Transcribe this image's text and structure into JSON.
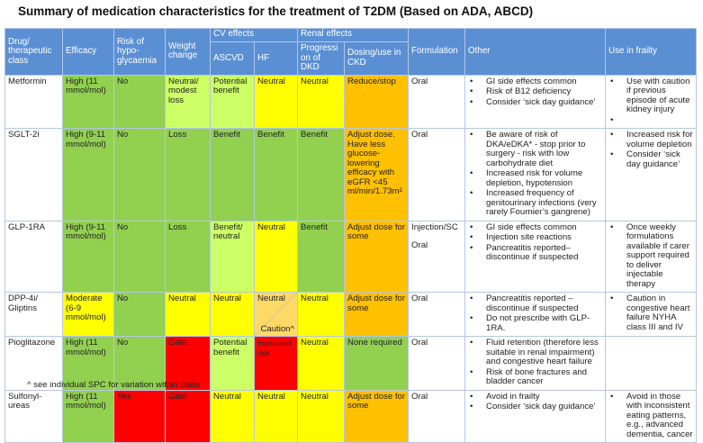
{
  "title": "Summary of medication characteristics for the treatment of T2DM (Based on ADA, ABCD)",
  "headers": {
    "drug": "Drug/ therapeutic class",
    "efficacy": "Efficacy",
    "hypo": "Risk of hypo-glycaemia",
    "weight": "Weight change",
    "cv": "CV effects",
    "ascvd": "ASCVD",
    "hf": "HF",
    "renal": "Renal effects",
    "dkd": "Progressi on of DKD",
    "ckd": "Dosing/use in CKD",
    "formulation": "Formulation",
    "other": "Other",
    "frailty": "Use in frailty"
  },
  "colors": {
    "header": "#5b8fd4",
    "green": "#92d050",
    "light_green": "#ccff66",
    "yellow": "#ffff00",
    "orange": "#ffc000",
    "red": "#ff0000",
    "peach": "#ffd966"
  },
  "rows": [
    {
      "drug": "Metformin",
      "efficacy": {
        "text": "High (11 mmol/mol)",
        "color": "g"
      },
      "hypo": {
        "text": "No",
        "color": "g"
      },
      "weight": {
        "text": "Neutral/ modest loss",
        "color": "lg"
      },
      "ascvd": {
        "text": "Potential benefit",
        "color": "lg"
      },
      "hf": {
        "text": "Neutral",
        "color": "y"
      },
      "dkd": {
        "text": "Neutral",
        "color": "y"
      },
      "ckd": {
        "text": "Reduce/stop",
        "color": "o"
      },
      "formulation": [
        "Oral"
      ],
      "other": [
        "GI side effects common",
        "Risk of B12 deficiency",
        "Consider ‘sick day guidance’"
      ],
      "frailty": [
        "Use with caution if previous episode of acute kidney injury",
        ""
      ]
    },
    {
      "drug": "SGLT-2i",
      "efficacy": {
        "text": "High (9-11 mmol/mol)",
        "color": "g"
      },
      "hypo": {
        "text": "No",
        "color": "g"
      },
      "weight": {
        "text": "Loss",
        "color": "g"
      },
      "ascvd": {
        "text": "Benefit",
        "color": "g"
      },
      "hf": {
        "text": "Benefit",
        "color": "g"
      },
      "dkd": {
        "text": "Benefit",
        "color": "g"
      },
      "ckd": {
        "text": "Adjust dose. Have less glucose-lowering efficacy with eGFR <45 ml/min/1.73m²",
        "color": "o"
      },
      "formulation": [
        "Oral"
      ],
      "other": [
        "Be aware of risk of DKA/eDKA* - stop prior to surgery - risk with low carbohydrate diet",
        "Increased risk for volume depletion, hypotension",
        "Increased frequency of genitourinary infections (very rarely Fournier’s gangrene)"
      ],
      "frailty": [
        "Increased risk for volume depletion",
        "Consider ‘sick day guidance’"
      ]
    },
    {
      "drug": "GLP-1RA",
      "efficacy": {
        "text": "High (9-11 mmol/mol)",
        "color": "g"
      },
      "hypo": {
        "text": "No",
        "color": "g"
      },
      "weight": {
        "text": "Loss",
        "color": "g"
      },
      "ascvd": {
        "text": "Benefit/ neutral",
        "color": "lg"
      },
      "hf": {
        "text": "Neutral",
        "color": "y"
      },
      "dkd": {
        "text": "Benefit",
        "color": "g"
      },
      "ckd": {
        "text": "Adjust dose for some",
        "color": "o"
      },
      "formulation": [
        "Injection/SC",
        "Oral"
      ],
      "other": [
        "GI side effects common",
        "Injection site reactions",
        "Pancreatitis reported– discontinue if suspected"
      ],
      "frailty": [
        "Once weekly formulations available if carer support required to deliver injectable therapy"
      ]
    },
    {
      "drug": "DPP-4i/ Gliptins",
      "efficacy": {
        "text": "Moderate (6-9 mmol/mol)",
        "color": "y"
      },
      "hypo": {
        "text": "No",
        "color": "g"
      },
      "weight": {
        "text": "Neutral",
        "color": "y"
      },
      "ascvd": {
        "text": "Neutral",
        "color": "y"
      },
      "hf": {
        "text": "Neutral",
        "color": "pc",
        "caution": "Caution^"
      },
      "dkd": {
        "text": "Neutral",
        "color": "y"
      },
      "ckd": {
        "text": "Adjust dose for some",
        "color": "o"
      },
      "formulation": [
        "Oral"
      ],
      "other": [
        "Pancreatitis reported – discontinue if suspected",
        "Do not prescribe with GLP-1RA."
      ],
      "frailty": [
        "Caution in congestive heart failure NYHA class III and IV"
      ]
    },
    {
      "drug": "Pioglitazone",
      "efficacy": {
        "text": "High (11 mmol/mol)",
        "color": "g"
      },
      "hypo": {
        "text": "No",
        "color": "g"
      },
      "weight": {
        "text": "Gain",
        "color": "r"
      },
      "ascvd": {
        "text": "Potential benefit",
        "color": "lg"
      },
      "hf": {
        "text": "Increased risk",
        "color": "r"
      },
      "dkd": {
        "text": "Neutral",
        "color": "y"
      },
      "ckd": {
        "text": "None required",
        "color": "g"
      },
      "formulation": [
        "Oral"
      ],
      "other": [
        "Fluid retention (therefore less suitable in renal impairment) and congestive heart failure",
        "Risk of bone fractures and bladder cancer"
      ],
      "frailty": []
    },
    {
      "drug": "Sulfonyl-ureas",
      "efficacy": {
        "text": "High (11 mmol/mol)",
        "color": "g"
      },
      "hypo": {
        "text": "Yes",
        "color": "r"
      },
      "weight": {
        "text": "Gain",
        "color": "r"
      },
      "ascvd": {
        "text": "Neutral",
        "color": "y"
      },
      "hf": {
        "text": "Neutral",
        "color": "y"
      },
      "dkd": {
        "text": "Neutral",
        "color": "y"
      },
      "ckd": {
        "text": "Adjust dose for some",
        "color": "o"
      },
      "formulation": [
        "Oral"
      ],
      "other": [
        "Avoid in frailty",
        "Consider ‘sick day guidance’"
      ],
      "frailty": [
        "Avoid in those with inconsistent eating patterns, e.g., advanced dementia, cancer"
      ]
    }
  ],
  "footnote": "^ see individual SPC for variation within class"
}
